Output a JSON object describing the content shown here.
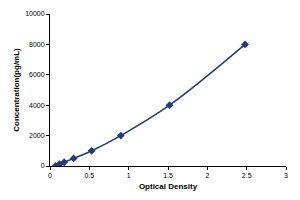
{
  "chart_data": {
    "type": "scatter",
    "x": [
      0.07,
      0.12,
      0.18,
      0.3,
      0.53,
      0.9,
      1.52,
      2.48
    ],
    "values": [
      0,
      125,
      250,
      500,
      1000,
      2000,
      4000,
      8000
    ],
    "color": "#1f3d7a",
    "marker": "diamond",
    "line_style": "solid",
    "x_label": "Optical Density",
    "y_label": "Concentration(pg/mL)",
    "xlim": [
      0,
      3
    ],
    "xticks": [
      0,
      0.5,
      1,
      1.5,
      2,
      2.5,
      3
    ],
    "ylim": [
      0,
      10000
    ],
    "yticks": [
      0,
      2000,
      4000,
      6000,
      8000,
      10000
    ],
    "grid": false
  }
}
